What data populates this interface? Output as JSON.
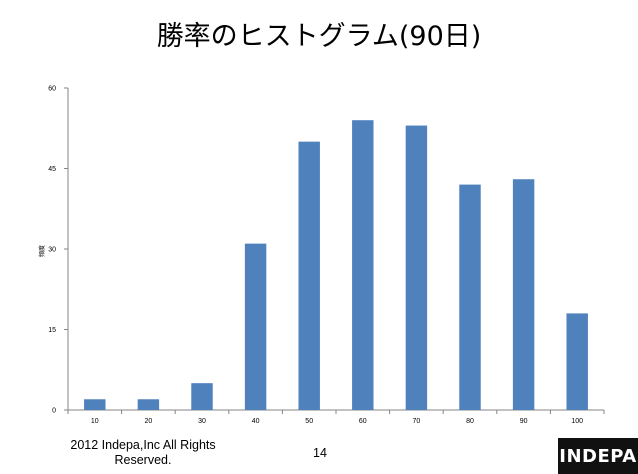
{
  "slide": {
    "title": "勝率のヒストグラム(90日)",
    "copyright": "2012 Indepa,Inc All Rights Reserved.",
    "page_number": "14",
    "logo_text": "INDEPA"
  },
  "chart_data": {
    "type": "bar",
    "categories": [
      "10",
      "20",
      "30",
      "40",
      "50",
      "60",
      "70",
      "80",
      "90",
      "100"
    ],
    "values": [
      2,
      2,
      5,
      31,
      50,
      54,
      53,
      42,
      43,
      18
    ],
    "title": "",
    "xlabel": "",
    "ylabel": "頻度",
    "ylim": [
      0,
      60
    ],
    "yticks": [
      0,
      15,
      30,
      45,
      60
    ],
    "grid": false,
    "bar_color": "#4f81bd"
  }
}
